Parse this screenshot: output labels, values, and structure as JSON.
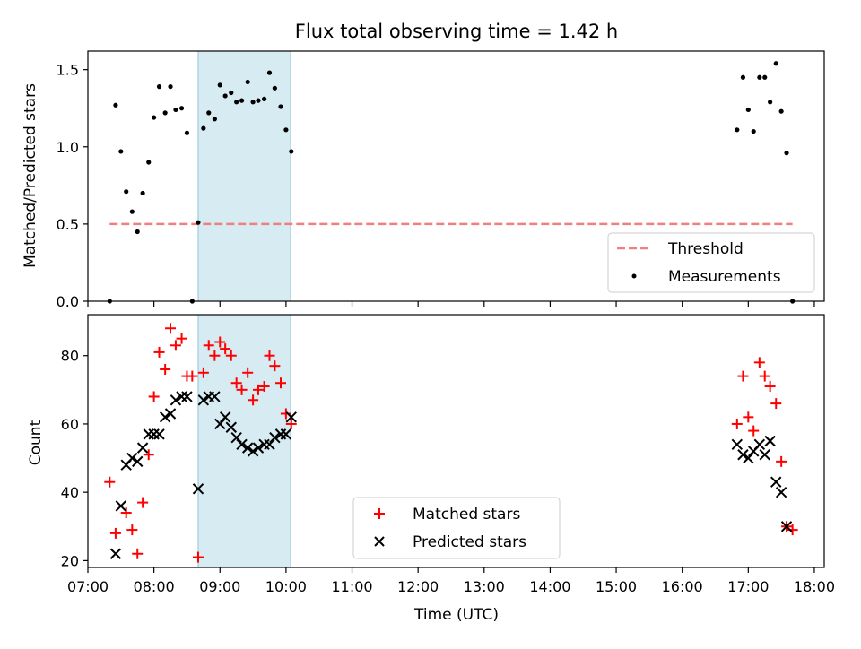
{
  "chart_data": [
    {
      "type": "scatter",
      "title": "Flux total observing time = 1.42 h",
      "xlabel": "",
      "ylabel": "Matched/Predicted stars",
      "x_axis": "time (UTC), hours",
      "xlim": [
        7.0,
        18.15
      ],
      "ylim": [
        0,
        1.62
      ],
      "yticks": [
        "0.0",
        "0.5",
        "1.0",
        "1.5"
      ],
      "threshold": {
        "name": "Threshold",
        "y": 0.5,
        "x_range": [
          7.33,
          17.67
        ],
        "color": "#f08080"
      },
      "shaded_interval": [
        8.67,
        10.07
      ],
      "legend": {
        "position": "bottom-right",
        "entries": [
          "Threshold",
          "Measurements"
        ]
      },
      "series": [
        {
          "name": "Measurements",
          "color": "#000000",
          "points": [
            [
              7.33,
              0.0
            ],
            [
              7.42,
              1.27
            ],
            [
              7.5,
              0.97
            ],
            [
              7.58,
              0.71
            ],
            [
              7.67,
              0.58
            ],
            [
              7.75,
              0.45
            ],
            [
              7.83,
              0.7
            ],
            [
              7.92,
              0.9
            ],
            [
              8.0,
              1.19
            ],
            [
              8.08,
              1.39
            ],
            [
              8.17,
              1.22
            ],
            [
              8.25,
              1.39
            ],
            [
              8.33,
              1.24
            ],
            [
              8.42,
              1.25
            ],
            [
              8.5,
              1.09
            ],
            [
              8.58,
              0.0
            ],
            [
              8.67,
              0.51
            ],
            [
              8.75,
              1.12
            ],
            [
              8.83,
              1.22
            ],
            [
              8.92,
              1.18
            ],
            [
              9.0,
              1.4
            ],
            [
              9.08,
              1.33
            ],
            [
              9.17,
              1.35
            ],
            [
              9.25,
              1.29
            ],
            [
              9.33,
              1.3
            ],
            [
              9.42,
              1.42
            ],
            [
              9.5,
              1.29
            ],
            [
              9.58,
              1.3
            ],
            [
              9.67,
              1.31
            ],
            [
              9.75,
              1.48
            ],
            [
              9.83,
              1.38
            ],
            [
              9.92,
              1.26
            ],
            [
              10.0,
              1.11
            ],
            [
              10.08,
              0.97
            ],
            [
              16.83,
              1.11
            ],
            [
              16.92,
              1.45
            ],
            [
              17.0,
              1.24
            ],
            [
              17.08,
              1.1
            ],
            [
              17.17,
              1.45
            ],
            [
              17.25,
              1.45
            ],
            [
              17.33,
              1.29
            ],
            [
              17.42,
              1.54
            ],
            [
              17.5,
              1.23
            ],
            [
              17.58,
              0.96
            ],
            [
              17.67,
              0.0
            ]
          ]
        }
      ]
    },
    {
      "type": "scatter",
      "title": "",
      "xlabel": "Time (UTC)",
      "ylabel": "Count",
      "x_axis": "time (UTC), hours",
      "xlim": [
        7.0,
        18.15
      ],
      "ylim": [
        18,
        92
      ],
      "yticks": [
        "20",
        "40",
        "60",
        "80"
      ],
      "xticks": [
        "07:00",
        "08:00",
        "09:00",
        "10:00",
        "11:00",
        "12:00",
        "13:00",
        "14:00",
        "15:00",
        "16:00",
        "17:00",
        "18:00"
      ],
      "shaded_interval": [
        8.67,
        10.07
      ],
      "legend": {
        "position": "bottom-center",
        "entries": [
          "Matched stars",
          "Predicted stars"
        ]
      },
      "series": [
        {
          "name": "Matched stars",
          "marker": "plus",
          "color": "#ff0000",
          "points": [
            [
              7.33,
              43
            ],
            [
              7.42,
              28
            ],
            [
              7.58,
              34
            ],
            [
              7.67,
              29
            ],
            [
              7.75,
              22
            ],
            [
              7.83,
              37
            ],
            [
              7.92,
              51
            ],
            [
              8.0,
              68
            ],
            [
              8.08,
              81
            ],
            [
              8.17,
              76
            ],
            [
              8.25,
              88
            ],
            [
              8.33,
              83
            ],
            [
              8.42,
              85
            ],
            [
              8.5,
              74
            ],
            [
              8.58,
              74
            ],
            [
              8.67,
              21
            ],
            [
              8.75,
              75
            ],
            [
              8.83,
              83
            ],
            [
              8.92,
              80
            ],
            [
              9.0,
              84
            ],
            [
              9.08,
              82
            ],
            [
              9.17,
              80
            ],
            [
              9.25,
              72
            ],
            [
              9.33,
              70
            ],
            [
              9.42,
              75
            ],
            [
              9.5,
              67
            ],
            [
              9.58,
              70
            ],
            [
              9.67,
              71
            ],
            [
              9.75,
              80
            ],
            [
              9.83,
              77
            ],
            [
              9.92,
              72
            ],
            [
              10.0,
              63
            ],
            [
              10.08,
              60
            ],
            [
              16.83,
              60
            ],
            [
              16.92,
              74
            ],
            [
              17.0,
              62
            ],
            [
              17.08,
              58
            ],
            [
              17.17,
              78
            ],
            [
              17.25,
              74
            ],
            [
              17.33,
              71
            ],
            [
              17.42,
              66
            ],
            [
              17.5,
              49
            ],
            [
              17.58,
              30
            ],
            [
              17.67,
              29
            ]
          ]
        },
        {
          "name": "Predicted stars",
          "marker": "x",
          "color": "#000000",
          "points": [
            [
              7.42,
              22
            ],
            [
              7.5,
              36
            ],
            [
              7.58,
              48
            ],
            [
              7.67,
              50
            ],
            [
              7.75,
              49
            ],
            [
              7.83,
              53
            ],
            [
              7.92,
              57
            ],
            [
              8.0,
              57
            ],
            [
              8.08,
              57
            ],
            [
              8.17,
              62
            ],
            [
              8.25,
              63
            ],
            [
              8.33,
              67
            ],
            [
              8.42,
              68
            ],
            [
              8.5,
              68
            ],
            [
              8.67,
              41
            ],
            [
              8.75,
              67
            ],
            [
              8.83,
              68
            ],
            [
              8.92,
              68
            ],
            [
              9.0,
              60
            ],
            [
              9.08,
              62
            ],
            [
              9.17,
              59
            ],
            [
              9.25,
              56
            ],
            [
              9.33,
              54
            ],
            [
              9.42,
              53
            ],
            [
              9.5,
              52
            ],
            [
              9.58,
              53
            ],
            [
              9.67,
              54
            ],
            [
              9.75,
              54
            ],
            [
              9.83,
              56
            ],
            [
              9.92,
              57
            ],
            [
              10.0,
              57
            ],
            [
              10.08,
              62
            ],
            [
              16.83,
              54
            ],
            [
              16.92,
              51
            ],
            [
              17.0,
              50
            ],
            [
              17.08,
              52
            ],
            [
              17.17,
              54
            ],
            [
              17.25,
              51
            ],
            [
              17.33,
              55
            ],
            [
              17.42,
              43
            ],
            [
              17.5,
              40
            ],
            [
              17.58,
              30
            ]
          ]
        }
      ]
    }
  ]
}
